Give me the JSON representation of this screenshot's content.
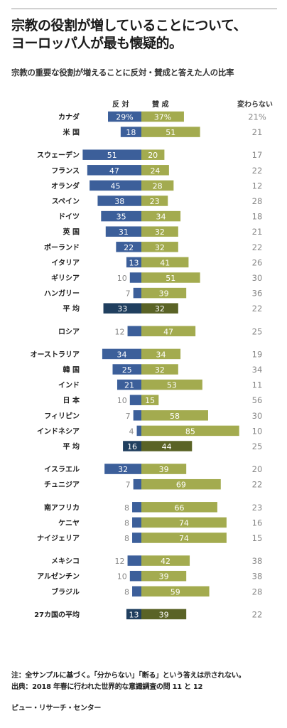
{
  "title_line1": "宗教の役割が増していることについて、",
  "title_line2": "ヨーロッパ人が最も懐疑的。",
  "subtitle": "宗教の重要な役割が増えることに反対・賛成と答えた人の比率",
  "headers": {
    "oppose": "反 対",
    "favor": "賛 成",
    "unchanged": "変わらない"
  },
  "colors": {
    "oppose": "#3c5f9a",
    "favor": "#a3ab4f",
    "oppose_avg": "#203f5f",
    "favor_avg": "#5a6326",
    "label_inside": "#ffffff",
    "label_outside": "#888888",
    "unchanged_text": "#888888"
  },
  "chart_data": {
    "type": "bar",
    "subtype": "diverging-horizontal",
    "series_names": [
      "反 対",
      "賛 成",
      "変わらない"
    ],
    "groups": [
      {
        "rows": [
          {
            "country": "カナダ",
            "oppose": 29,
            "favor": 37,
            "unchanged": 21,
            "oppose_label": "29%",
            "favor_label": "37%",
            "unchanged_label": "21%"
          },
          {
            "country": "米 国",
            "oppose": 18,
            "favor": 51,
            "unchanged": 21
          }
        ]
      },
      {
        "rows": [
          {
            "country": "スウェーデン",
            "oppose": 51,
            "favor": 20,
            "unchanged": 17
          },
          {
            "country": "フランス",
            "oppose": 47,
            "favor": 24,
            "unchanged": 22
          },
          {
            "country": "オランダ",
            "oppose": 45,
            "favor": 28,
            "unchanged": 12
          },
          {
            "country": "スペイン",
            "oppose": 38,
            "favor": 23,
            "unchanged": 28
          },
          {
            "country": "ドイツ",
            "oppose": 35,
            "favor": 34,
            "unchanged": 18
          },
          {
            "country": "英 国",
            "oppose": 31,
            "favor": 32,
            "unchanged": 21
          },
          {
            "country": "ポーランド",
            "oppose": 22,
            "favor": 32,
            "unchanged": 22
          },
          {
            "country": "イタリア",
            "oppose": 13,
            "favor": 41,
            "unchanged": 26
          },
          {
            "country": "ギリシア",
            "oppose": 10,
            "favor": 51,
            "unchanged": 30
          },
          {
            "country": "ハンガリー",
            "oppose": 7,
            "favor": 39,
            "unchanged": 36
          },
          {
            "country": "平 均",
            "oppose": 33,
            "favor": 32,
            "unchanged": 22,
            "average": true
          }
        ]
      },
      {
        "rows": [
          {
            "country": "ロシア",
            "oppose": 12,
            "favor": 47,
            "unchanged": 25
          }
        ]
      },
      {
        "rows": [
          {
            "country": "オーストラリア",
            "oppose": 34,
            "favor": 34,
            "unchanged": 19
          },
          {
            "country": "韓 国",
            "oppose": 25,
            "favor": 32,
            "unchanged": 34
          },
          {
            "country": "インド",
            "oppose": 21,
            "favor": 53,
            "unchanged": 11
          },
          {
            "country": "日 本",
            "oppose": 10,
            "favor": 15,
            "unchanged": 56
          },
          {
            "country": "フィリピン",
            "oppose": 7,
            "favor": 58,
            "unchanged": 30
          },
          {
            "country": "インドネシア",
            "oppose": 4,
            "favor": 85,
            "unchanged": 10
          },
          {
            "country": "平 均",
            "oppose": 16,
            "favor": 44,
            "unchanged": 25,
            "average": true
          }
        ]
      },
      {
        "rows": [
          {
            "country": "イスラエル",
            "oppose": 32,
            "favor": 39,
            "unchanged": 20
          },
          {
            "country": "チュニジア",
            "oppose": 7,
            "favor": 69,
            "unchanged": 22
          }
        ]
      },
      {
        "rows": [
          {
            "country": "南アフリカ",
            "oppose": 8,
            "favor": 66,
            "unchanged": 23
          },
          {
            "country": "ケニヤ",
            "oppose": 8,
            "favor": 74,
            "unchanged": 16
          },
          {
            "country": "ナイジェリア",
            "oppose": 8,
            "favor": 74,
            "unchanged": 15
          }
        ]
      },
      {
        "rows": [
          {
            "country": "メキシコ",
            "oppose": 12,
            "favor": 42,
            "unchanged": 38
          },
          {
            "country": "アルゼンチン",
            "oppose": 10,
            "favor": 39,
            "unchanged": 38
          },
          {
            "country": "ブラジル",
            "oppose": 8,
            "favor": 59,
            "unchanged": 28
          }
        ]
      },
      {
        "rows": [
          {
            "country": "27カ国の平均",
            "oppose": 13,
            "favor": 39,
            "unchanged": 22,
            "average": true
          }
        ]
      }
    ]
  },
  "footer": {
    "note": "注：全サンプルに基づく。「分からない」「断る」という答えは示されない。",
    "source": "出典：2018 年春に行われた世界的な意識調査の問 11 と 12",
    "credit": "ピュー・リサーチ・センター"
  }
}
